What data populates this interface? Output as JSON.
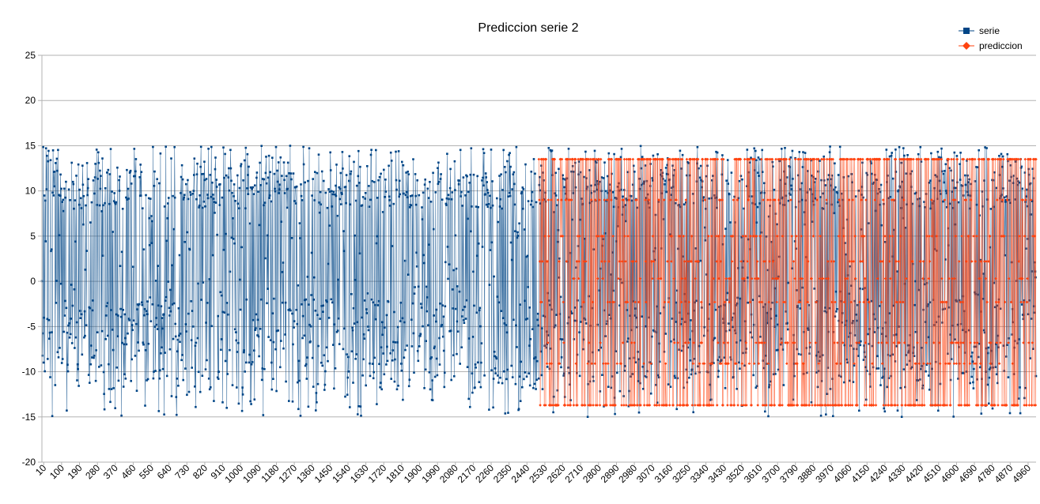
{
  "chart_data": {
    "type": "line",
    "title": "Prediccion serie 2",
    "xlabel": "",
    "ylabel": "",
    "ylim": [
      -20,
      25
    ],
    "xlim": [
      1,
      5000
    ],
    "y_ticks": [
      "25",
      "20",
      "15",
      "10",
      "5",
      "0",
      "-5",
      "-10",
      "-15",
      "-20"
    ],
    "x_tick_step": 90,
    "x_tick_start": 10,
    "x_tick_labels": [
      "10",
      "100",
      "190",
      "280",
      "370",
      "460",
      "550",
      "640",
      "730",
      "820",
      "910",
      "1000",
      "1090",
      "1180",
      "1270",
      "1360",
      "1450",
      "1540",
      "1630",
      "1720",
      "1810",
      "1900",
      "1990",
      "2080",
      "2170",
      "2260",
      "2350",
      "2440",
      "2530",
      "2620",
      "2710",
      "2800",
      "2890",
      "2980",
      "3070",
      "3160",
      "3250",
      "3340",
      "3430",
      "3520",
      "3610",
      "3700",
      "3790",
      "3880",
      "3970",
      "4060",
      "4150",
      "4240",
      "4330",
      "4420",
      "4510",
      "4600",
      "4690",
      "4780",
      "4870",
      "4960"
    ],
    "grid": true,
    "legend_position": "top-right",
    "series": [
      {
        "name": "serie",
        "color": "#004586",
        "marker": "square",
        "x_range": [
          1,
          5000
        ],
        "value_range": [
          -18,
          18
        ],
        "description_values": "oscillating values mostly between -15 and 15"
      },
      {
        "name": "prediccion",
        "color": "#ff420e",
        "marker": "diamond",
        "x_range": [
          2500,
          5000
        ],
        "levels": [
          -13.7,
          -9.1,
          -6.8,
          -2.3,
          0.3,
          2.2,
          5.0,
          9.0,
          13.5
        ]
      }
    ]
  }
}
